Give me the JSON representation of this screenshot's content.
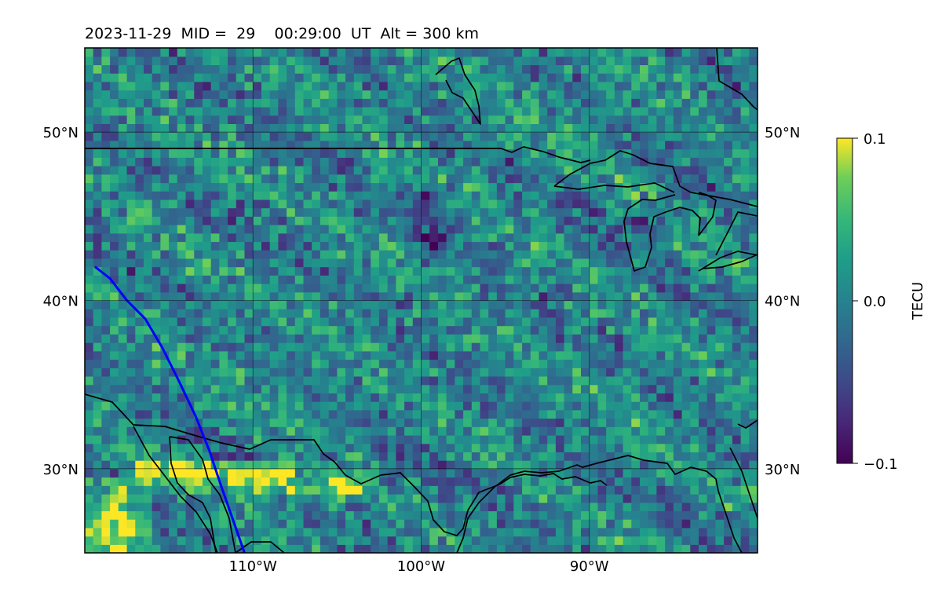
{
  "chart_data": {
    "type": "heatmap",
    "title": "2023-11-29  MID =  29    00:29:00  UT  Alt = 300 km",
    "map": {
      "lon_range": [
        -120,
        -80
      ],
      "lat_range": [
        25,
        55
      ],
      "lon_ticks": [
        {
          "value": -110,
          "label": "110°W"
        },
        {
          "value": -100,
          "label": "100°W"
        },
        {
          "value": -90,
          "label": "90°W"
        }
      ],
      "lat_ticks": [
        {
          "value": 50,
          "label": "50°N"
        },
        {
          "value": 40,
          "label": "40°N"
        },
        {
          "value": 30,
          "label": "30°N"
        }
      ],
      "grid": true,
      "coastlines_and_borders": true
    },
    "colorbar": {
      "label": "TECU",
      "colormap": "viridis",
      "vmin": -0.1,
      "vmax": 0.1,
      "ticks": [
        {
          "value": 0.1,
          "label": "0.1"
        },
        {
          "value": 0.0,
          "label": "0.0"
        },
        {
          "value": -0.1,
          "label": "−0.1"
        }
      ]
    },
    "track_line": {
      "color": "#0000ff",
      "points": [
        [
          -119.4,
          42.0
        ],
        [
          -118.5,
          41.3
        ],
        [
          -117.5,
          40.0
        ],
        [
          -116.4,
          38.9
        ],
        [
          -115.4,
          37.2
        ],
        [
          -114.4,
          35.2
        ],
        [
          -113.4,
          33.1
        ],
        [
          -112.6,
          31.1
        ],
        [
          -111.9,
          29.0
        ],
        [
          -111.2,
          27.0
        ],
        [
          -110.5,
          25.0
        ]
      ]
    },
    "field_features": {
      "positive_bands": [
        {
          "lat": 29.6,
          "lon": [
            -117.0,
            -108.0
          ],
          "amp": 0.12
        },
        {
          "lat": 28.7,
          "lon": [
            -111.0,
            -104.0
          ],
          "amp": 0.09
        }
      ],
      "negative_patches": [
        {
          "lon": -99.5,
          "lat": 45.5,
          "amp": -0.08
        },
        {
          "lon": -99.3,
          "lat": 43.0,
          "amp": -0.07
        },
        {
          "lon": -87.0,
          "lat": 44.5,
          "amp": -0.06
        }
      ]
    }
  }
}
